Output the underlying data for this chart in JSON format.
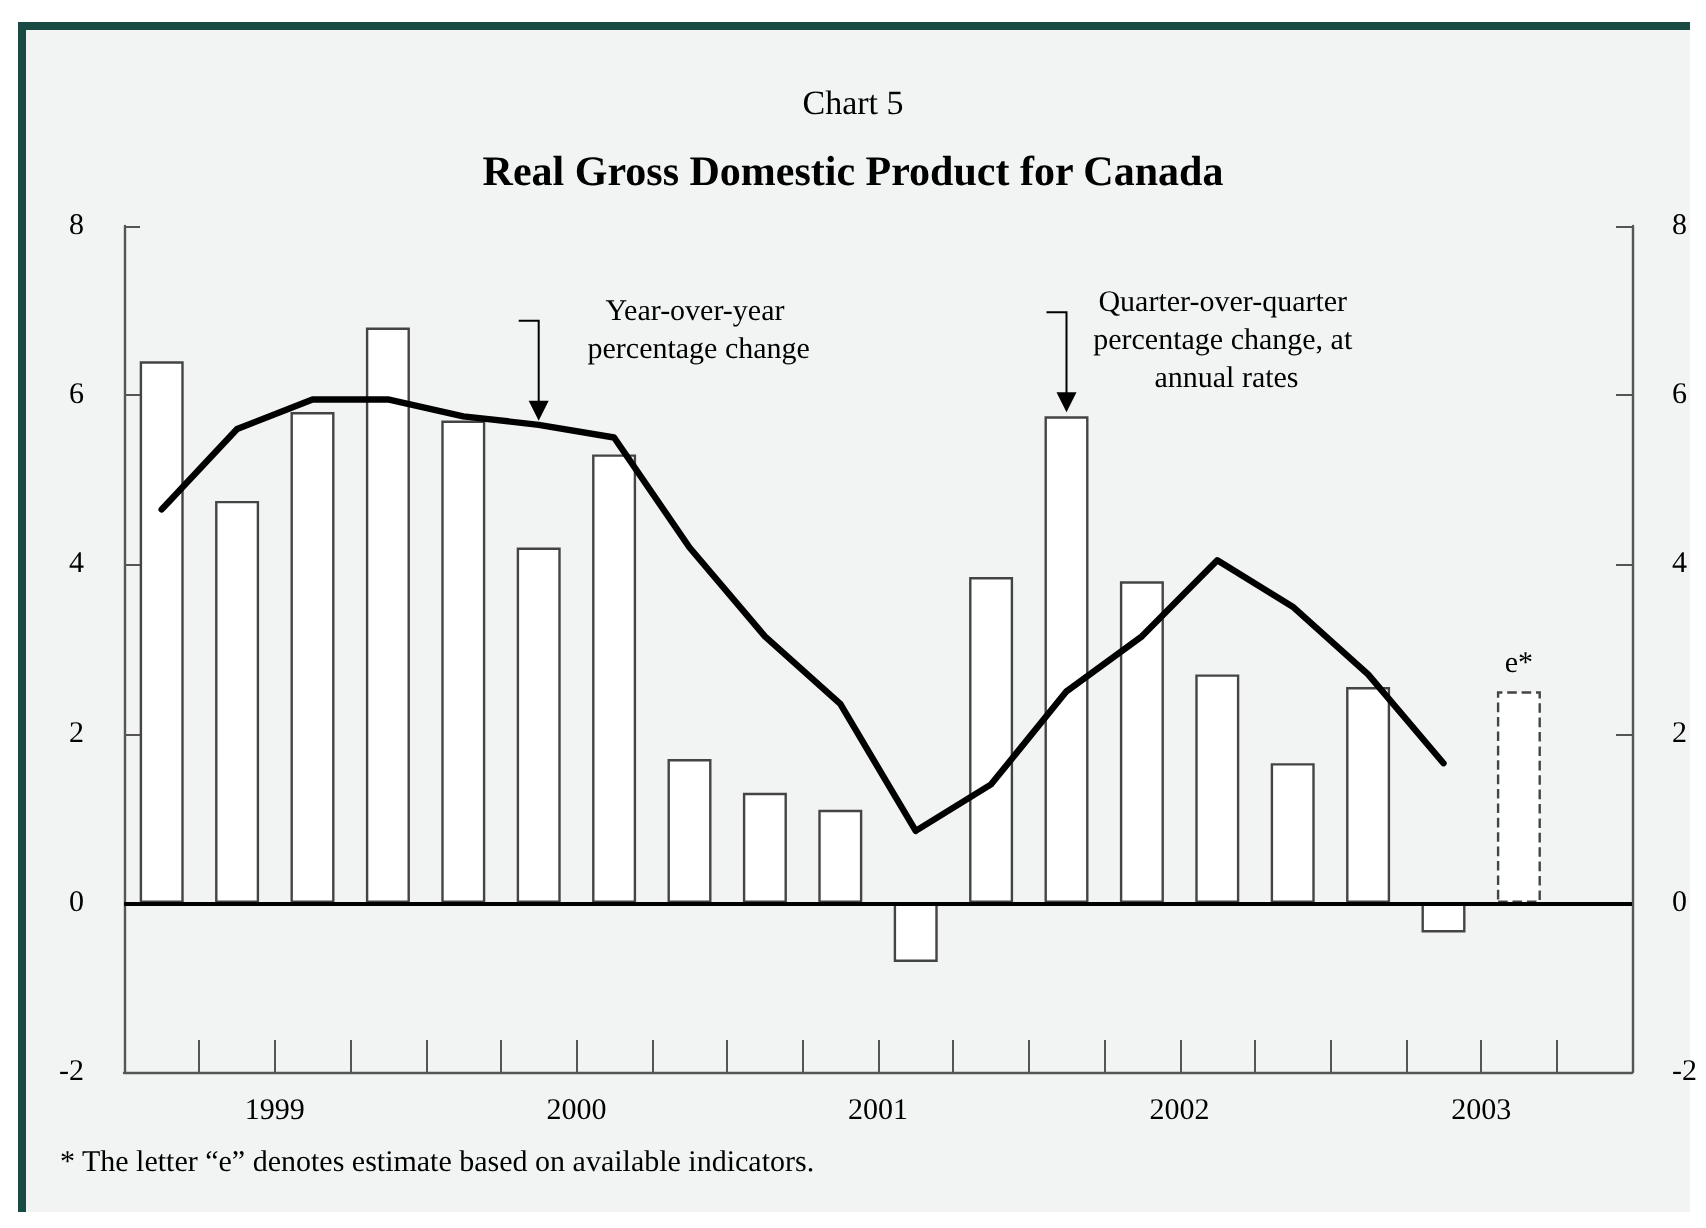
{
  "chart_data": {
    "type": "bar",
    "subtitle": "Chart 5",
    "title": "Real Gross Domestic Product for Canada",
    "x": [
      1999.125,
      1999.375,
      1999.625,
      1999.875,
      2000.125,
      2000.375,
      2000.625,
      2000.875,
      2001.125,
      2001.375,
      2001.625,
      2001.875,
      2002.125,
      2002.375,
      2002.625,
      2002.875,
      2003.125,
      2003.375,
      2003.625
    ],
    "xlim": [
      1999,
      2004
    ],
    "xticks": [
      {
        "value": 1999.25,
        "label": null
      },
      {
        "value": 1999.5,
        "label": "1999"
      },
      {
        "value": 1999.75,
        "label": null
      },
      {
        "value": 2000,
        "label": null
      },
      {
        "value": 2000.25,
        "label": null
      },
      {
        "value": 2000.5,
        "label": "2000"
      },
      {
        "value": 2000.75,
        "label": null
      },
      {
        "value": 2001,
        "label": null
      },
      {
        "value": 2001.25,
        "label": null
      },
      {
        "value": 2001.5,
        "label": "2001"
      },
      {
        "value": 2001.75,
        "label": null
      },
      {
        "value": 2002,
        "label": null
      },
      {
        "value": 2002.25,
        "label": null
      },
      {
        "value": 2002.5,
        "label": "2002"
      },
      {
        "value": 2002.75,
        "label": null
      },
      {
        "value": 2003,
        "label": null
      },
      {
        "value": 2003.25,
        "label": null
      },
      {
        "value": 2003.5,
        "label": "2003"
      },
      {
        "value": 2003.75,
        "label": null
      }
    ],
    "ylim": [
      -2,
      8
    ],
    "yticks": [
      -2,
      0,
      2,
      4,
      6,
      8
    ],
    "y2lim": [
      -2,
      8
    ],
    "y2ticks": [
      -2,
      0,
      2,
      4,
      6,
      8
    ],
    "series": [
      {
        "color": "#ffffff",
        "values": [
          6.4,
          4.75,
          5.8,
          6.8,
          5.7,
          4.2,
          5.3,
          1.7,
          1.3,
          1.1,
          -0.7,
          3.85,
          5.75,
          3.8,
          2.7,
          1.65,
          2.55,
          -0.35,
          null
        ]
      },
      {
        "color": "#ffffff",
        "line_style": "dashed",
        "values": [
          null,
          null,
          null,
          null,
          null,
          null,
          null,
          null,
          null,
          null,
          null,
          null,
          null,
          null,
          null,
          null,
          null,
          null,
          2.5
        ]
      },
      {
        "type": "line",
        "color": "#000000",
        "values": [
          4.65,
          5.6,
          5.95,
          5.95,
          5.75,
          5.65,
          5.5,
          4.2,
          3.15,
          2.35,
          0.85,
          1.4,
          2.5,
          3.15,
          4.05,
          3.5,
          2.7,
          1.65,
          null
        ]
      }
    ],
    "ref_lines": [
      {
        "axis": "y",
        "value": 0,
        "color": "#000000"
      }
    ],
    "annotations": [
      {
        "text": "Year-over-year percentage change",
        "x": 2000.375,
        "y": 5.65
      },
      {
        "text": "Quarter-over-quarter percentage change, at annual rates",
        "x": 2002.125,
        "y": 5.75
      },
      {
        "text": "e*",
        "x": 2003.625,
        "y": 2.5
      },
      "* The letter “e” denotes estimate based on available indicators."
    ],
    "grid": false,
    "marker": "none"
  }
}
